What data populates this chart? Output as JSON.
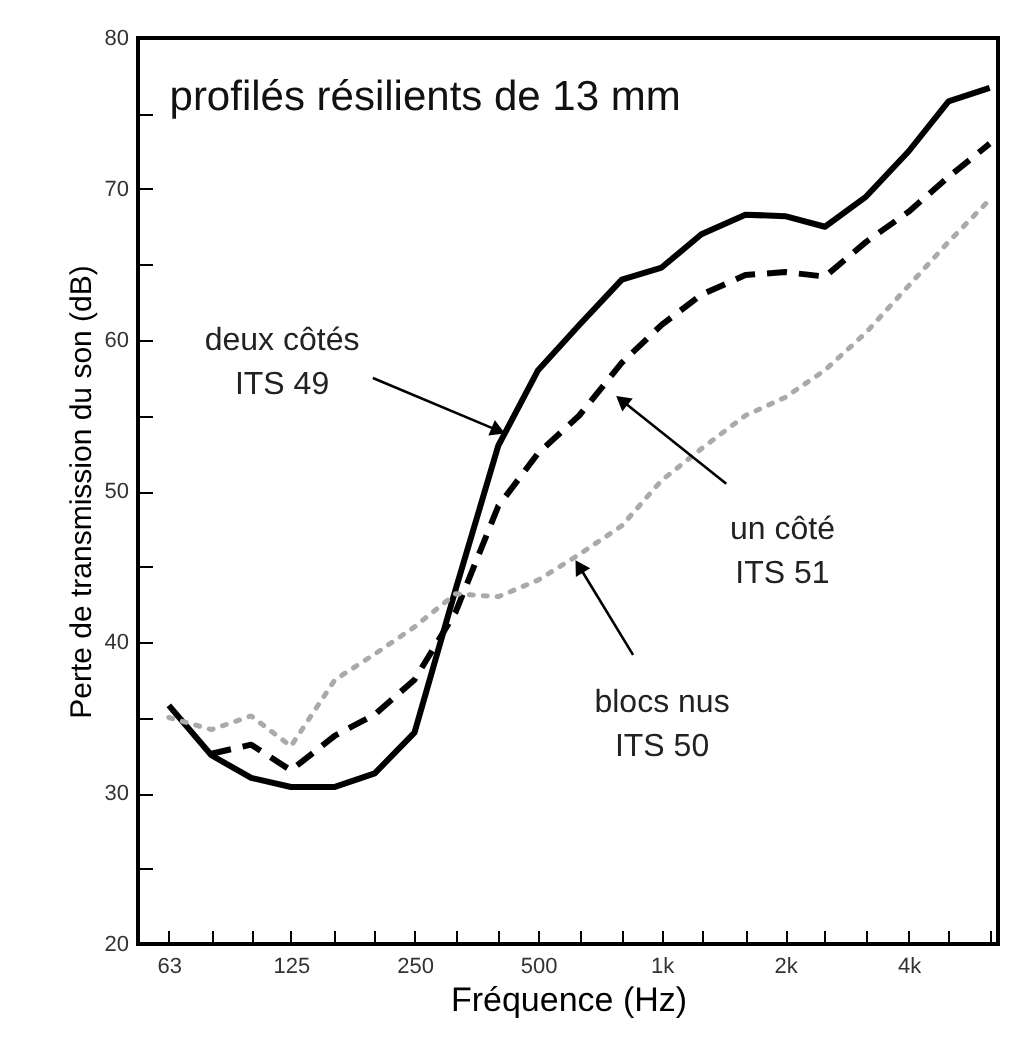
{
  "chart_data": {
    "type": "line",
    "title": "profilés résilients de 13 mm",
    "xlabel": "Fréquence (Hz)",
    "ylabel": "Perte de transmission du son (dB)",
    "x": [
      63,
      80,
      100,
      125,
      160,
      200,
      250,
      315,
      400,
      500,
      630,
      800,
      1000,
      1250,
      1600,
      2000,
      2500,
      3150,
      4000,
      5000,
      6300
    ],
    "series": [
      {
        "color": "#000000",
        "line_style": "solid",
        "values": [
          35.8,
          32.5,
          31,
          30.4,
          30.4,
          31.3,
          34,
          43.5,
          53,
          58,
          61,
          64,
          64.8,
          67,
          68.3,
          68.2,
          67.5,
          69.5,
          72.5,
          75.8,
          76.7
        ]
      },
      {
        "color": "#000000",
        "line_style": "dashed",
        "values": [
          null,
          32.6,
          33.2,
          31.5,
          33.8,
          35.2,
          37.5,
          42,
          49,
          52.5,
          55,
          58.5,
          61,
          63,
          64.3,
          64.5,
          64.2,
          66.5,
          68.5,
          70.8,
          73
        ]
      },
      {
        "color": "#aaaaaa",
        "line_style": "dotted",
        "values": [
          35,
          34.2,
          35.1,
          33.1,
          37.5,
          39.2,
          41,
          43.2,
          43,
          44.1,
          45.8,
          47.7,
          50.7,
          52.8,
          55,
          56.2,
          58,
          60.5,
          63.6,
          66.5,
          69.3
        ]
      }
    ],
    "annotations": [
      {
        "text": "deux côtés\nITS 49",
        "x": 400,
        "y": 54
      },
      {
        "text": "un côté\nITS 51",
        "x": 800,
        "y": 56
      },
      {
        "text": "blocs nus\nITS 50",
        "x": 630,
        "y": 45
      }
    ],
    "xlim": [
      53,
      6600
    ],
    "ylim": [
      20,
      80
    ],
    "xticks": [
      {
        "value": 63,
        "label": "63"
      },
      {
        "value": 80,
        "label": null
      },
      {
        "value": 100,
        "label": null
      },
      {
        "value": 125,
        "label": "125"
      },
      {
        "value": 160,
        "label": null
      },
      {
        "value": 200,
        "label": null
      },
      {
        "value": 250,
        "label": "250"
      },
      {
        "value": 315,
        "label": null
      },
      {
        "value": 400,
        "label": null
      },
      {
        "value": 500,
        "label": "500"
      },
      {
        "value": 630,
        "label": null
      },
      {
        "value": 800,
        "label": null
      },
      {
        "value": 1000,
        "label": "1k"
      },
      {
        "value": 1250,
        "label": null
      },
      {
        "value": 1600,
        "label": null
      },
      {
        "value": 2000,
        "label": "2k"
      },
      {
        "value": 2500,
        "label": null
      },
      {
        "value": 3150,
        "label": null
      },
      {
        "value": 4000,
        "label": "4k"
      },
      {
        "value": 5000,
        "label": null
      },
      {
        "value": 6300,
        "label": null
      }
    ],
    "yticks": [
      20,
      {
        "value": 25,
        "label": null
      },
      30,
      {
        "value": 35,
        "label": null
      },
      40,
      {
        "value": 45,
        "label": null
      },
      50,
      {
        "value": 55,
        "label": null
      },
      60,
      {
        "value": 65,
        "label": null
      },
      70,
      {
        "value": 75,
        "label": null
      },
      80
    ],
    "log": "x",
    "grid": false,
    "marker": "none"
  }
}
